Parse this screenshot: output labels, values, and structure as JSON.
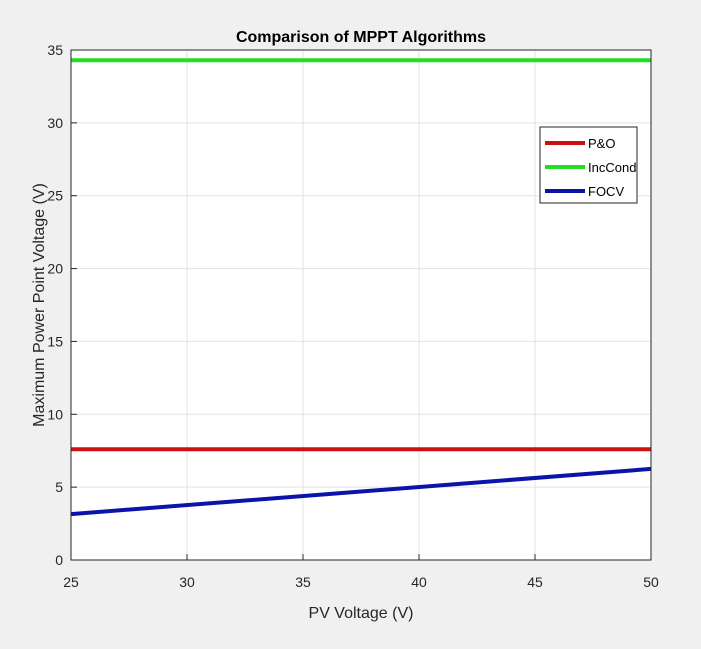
{
  "chart_data": {
    "type": "line",
    "title": "Comparison of MPPT Algorithms",
    "xlabel": "PV Voltage (V)",
    "ylabel": "Maximum Power Point Voltage (V)",
    "xlim": [
      25,
      50
    ],
    "ylim": [
      0,
      35
    ],
    "xticks": [
      25,
      30,
      35,
      40,
      45,
      50
    ],
    "yticks": [
      0,
      5,
      10,
      15,
      20,
      25,
      30,
      35
    ],
    "grid": true,
    "legend_position": "top-right",
    "series": [
      {
        "name": "P&O",
        "color": "#cc1111",
        "x": [
          25,
          50
        ],
        "y": [
          7.6,
          7.6
        ]
      },
      {
        "name": "IncCond",
        "color": "#22dd22",
        "x": [
          25,
          50
        ],
        "y": [
          34.3,
          34.3
        ]
      },
      {
        "name": "FOCV",
        "color": "#0a14a8",
        "x": [
          25,
          50
        ],
        "y": [
          3.15,
          6.25
        ]
      }
    ]
  }
}
